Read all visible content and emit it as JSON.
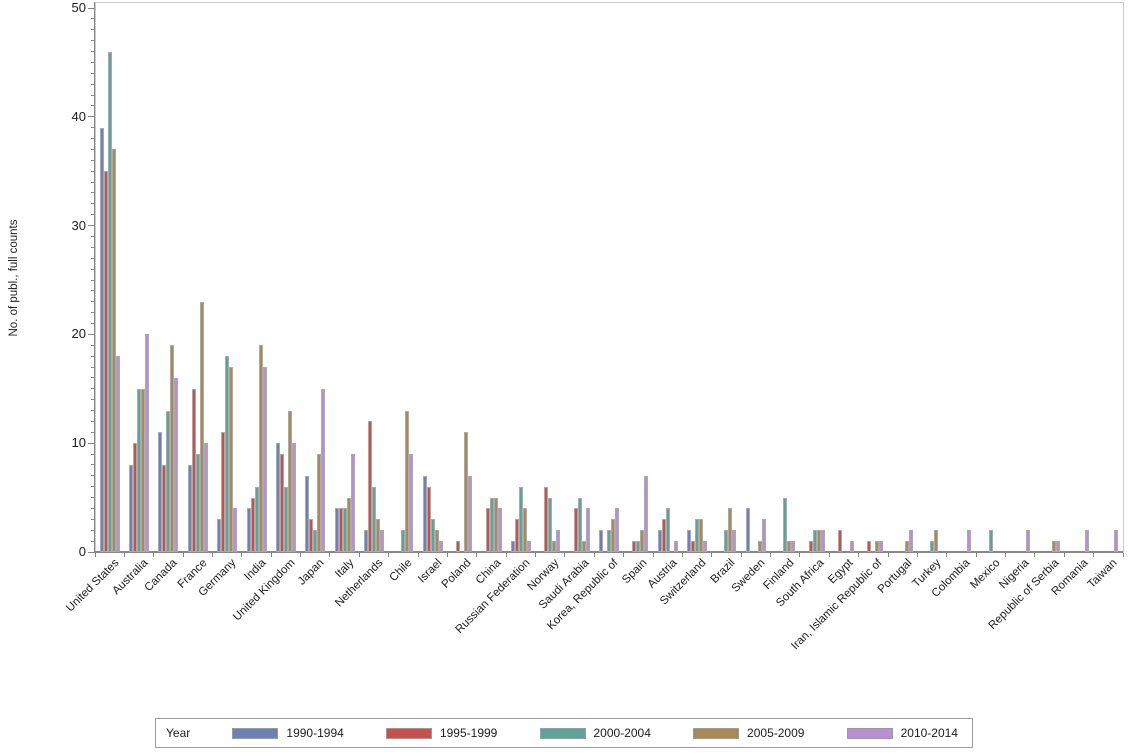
{
  "chart": {
    "y_axis_title": "No. of publ., full counts",
    "legend_title": "Year"
  },
  "chart_data": {
    "type": "bar",
    "title": "",
    "xlabel": "",
    "ylabel": "No. of publ., full counts",
    "ylim": [
      0,
      50
    ],
    "y_major_ticks": [
      0,
      10,
      20,
      30,
      40,
      50
    ],
    "y_minor_tick_step": 1,
    "grid": false,
    "legend": {
      "title": "Year",
      "position": "bottom"
    },
    "bar_outline_color": "#ababab",
    "axis_color": "#878787",
    "categories": [
      "United States",
      "Australia",
      "Canada",
      "France",
      "Germany",
      "India",
      "United Kingdom",
      "Japan",
      "Italy",
      "Netherlands",
      "Chile",
      "Israel",
      "Poland",
      "China",
      "Russian Federation",
      "Norway",
      "Saudi Arabia",
      "Korea, Republic of",
      "Spain",
      "Austria",
      "Switzerland",
      "Brazil",
      "Sweden",
      "Finland",
      "South Africa",
      "Egypt",
      "Iran, Islamic Republic of",
      "Portugal",
      "Turkey",
      "Colombia",
      "Mexico",
      "Nigeria",
      "Republic of Serbia",
      "Romania",
      "Taiwan"
    ],
    "series": [
      {
        "name": "1990-1994",
        "color": "#6f80b4",
        "values": [
          39,
          8,
          11,
          8,
          3,
          4,
          10,
          7,
          4,
          2,
          0,
          7,
          0,
          0,
          1,
          0,
          0,
          2,
          0,
          2,
          2,
          0,
          4,
          0,
          0,
          0,
          0,
          0,
          0,
          0,
          0,
          0,
          0,
          0,
          0
        ]
      },
      {
        "name": "1995-1999",
        "color": "#c5504c",
        "values": [
          35,
          10,
          8,
          15,
          11,
          5,
          9,
          3,
          4,
          12,
          0,
          6,
          1,
          4,
          3,
          6,
          4,
          0,
          1,
          3,
          1,
          0,
          0,
          0,
          1,
          2,
          1,
          0,
          0,
          0,
          0,
          0,
          0,
          0,
          0
        ]
      },
      {
        "name": "2000-2004",
        "color": "#5fa29a",
        "values": [
          46,
          15,
          13,
          9,
          18,
          6,
          6,
          2,
          4,
          6,
          2,
          3,
          0,
          5,
          6,
          5,
          5,
          2,
          1,
          4,
          3,
          2,
          0,
          5,
          2,
          0,
          0,
          0,
          1,
          0,
          2,
          0,
          0,
          0,
          0
        ]
      },
      {
        "name": "2005-2009",
        "color": "#a78a58",
        "values": [
          37,
          15,
          19,
          23,
          17,
          19,
          13,
          9,
          5,
          3,
          13,
          2,
          11,
          5,
          4,
          1,
          1,
          3,
          2,
          0,
          3,
          4,
          1,
          1,
          2,
          0,
          1,
          1,
          2,
          0,
          0,
          0,
          1,
          0,
          0
        ]
      },
      {
        "name": "2010-2014",
        "color": "#b98fd2",
        "values": [
          18,
          20,
          16,
          10,
          4,
          17,
          10,
          15,
          9,
          2,
          9,
          1,
          7,
          4,
          1,
          2,
          4,
          4,
          7,
          1,
          1,
          2,
          3,
          1,
          2,
          1,
          1,
          2,
          0,
          2,
          0,
          2,
          1,
          2,
          2
        ]
      }
    ]
  }
}
